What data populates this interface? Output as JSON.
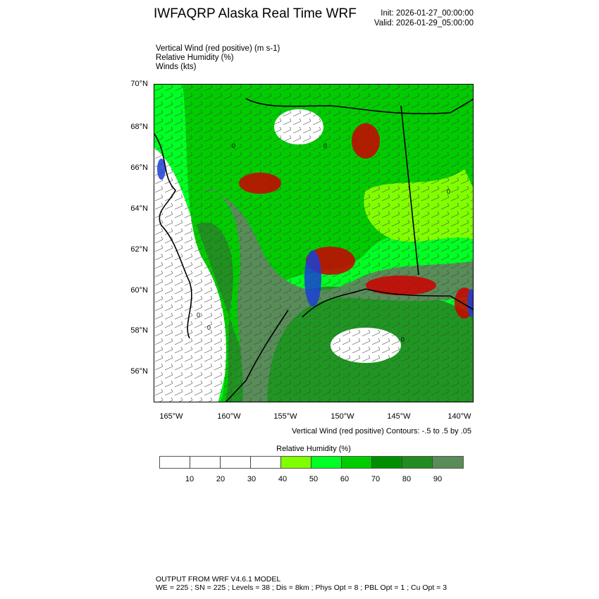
{
  "header": {
    "title": "IWFAQRP Alaska Real Time WRF",
    "init": "Init: 2026-01-27_00:00:00",
    "valid": "Valid: 2026-01-29_05:00:00"
  },
  "fields": [
    "Vertical Wind (red positive)   (m s-1)",
    "Relative Humidity   (%)",
    "Winds   (kts)"
  ],
  "map": {
    "lat_labels": [
      "70°N",
      "68°N",
      "66°N",
      "64°N",
      "62°N",
      "60°N",
      "58°N",
      "56°N"
    ],
    "lon_labels": [
      "165°W",
      "160°W",
      "155°W",
      "150°W",
      "145°W",
      "140°W"
    ],
    "contour_label": "0",
    "colors": {
      "updraft": "#cc0000",
      "downdraft": "#1a3fd6",
      "contour": "#ffffff",
      "coast": "#000000"
    }
  },
  "contour_note": "Vertical Wind (red positive) Contours: -.5 to .5 by .05",
  "colorbar": {
    "title": "Relative Humidity  (%)",
    "labels": [
      "10",
      "20",
      "30",
      "40",
      "50",
      "60",
      "70",
      "80",
      "90"
    ],
    "colors": [
      "#ffffff",
      "#ffffff",
      "#ffffff",
      "#ffffff",
      "#80ff00",
      "#00ff22",
      "#00cc00",
      "#008f00",
      "#228b22",
      "#588c58"
    ]
  },
  "footer": {
    "line1": "OUTPUT FROM WRF V4.6.1 MODEL",
    "line2": "WE = 225 ; SN = 225 ; Levels = 38 ; Dis = 8km ; Phys Opt = 8 ; PBL Opt = 1 ; Cu Opt = 3"
  }
}
